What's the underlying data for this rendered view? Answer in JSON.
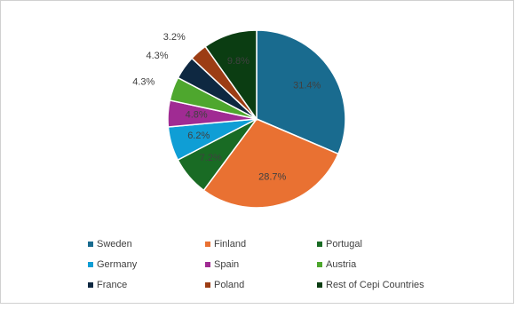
{
  "chart_data": {
    "type": "pie",
    "categories": [
      "Sweden",
      "Finland",
      "Portugal",
      "Germany",
      "Spain",
      "Austria",
      "France",
      "Poland",
      "Rest of Cepi Countries"
    ],
    "values": [
      31.4,
      28.7,
      7.2,
      6.2,
      4.8,
      4.3,
      4.3,
      3.2,
      9.8
    ],
    "value_labels": [
      "31.4%",
      "28.7%",
      "7.2%",
      "6.2%",
      "4.8%",
      "4.3%",
      "4.3%",
      "3.2%",
      "9.8%"
    ],
    "colors": [
      "#196b8f",
      "#e97132",
      "#196b24",
      "#0f9ed5",
      "#a02b93",
      "#4ea72e",
      "#0e2841",
      "#9c3d14",
      "#0b3d12"
    ],
    "legend": "bottom"
  }
}
